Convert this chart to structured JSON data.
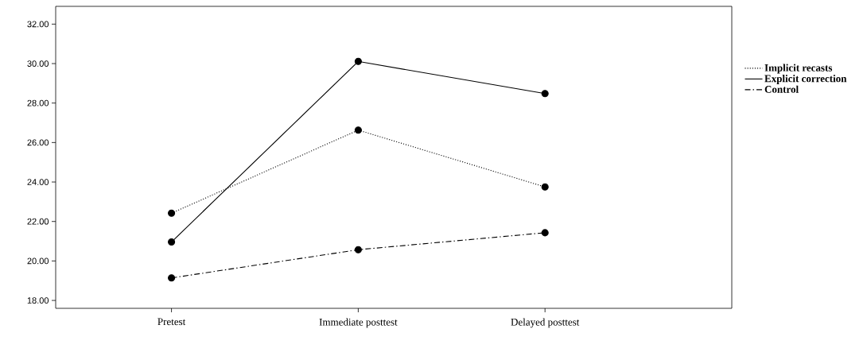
{
  "chart_data": {
    "type": "line",
    "categories": [
      "Pretest",
      "Immediate posttest",
      "Delayed posttest"
    ],
    "series": [
      {
        "name": "Implicit recasts",
        "color": "#000000",
        "line_style": "dotted",
        "values": [
          22.42,
          26.63,
          23.75
        ]
      },
      {
        "name": "Explicit correction",
        "color": "#000000",
        "line_style": "solid",
        "values": [
          20.96,
          30.11,
          28.48
        ]
      },
      {
        "name": "Control",
        "color": "#000000",
        "line_style": "dashdot",
        "values": [
          19.14,
          20.57,
          21.43
        ]
      }
    ],
    "ylim": [
      17.6,
      32.9
    ],
    "yticks": [
      {
        "value": 18,
        "label": "18.00"
      },
      {
        "value": 20,
        "label": "20.00"
      },
      {
        "value": 22,
        "label": "22.00"
      },
      {
        "value": 24,
        "label": "24.00"
      },
      {
        "value": 26,
        "label": "26.00"
      },
      {
        "value": 28,
        "label": "28.00"
      },
      {
        "value": 30,
        "label": "30.00"
      },
      {
        "value": 32,
        "label": "32.00"
      }
    ],
    "grid": false,
    "legend": "right",
    "marker": "circle"
  }
}
